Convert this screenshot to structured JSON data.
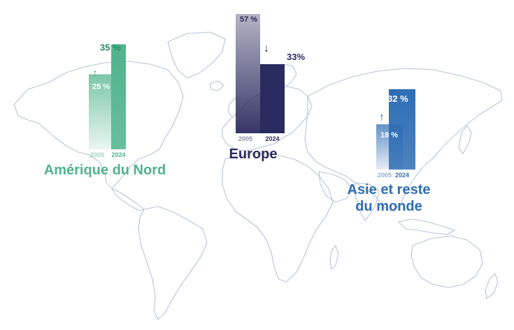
{
  "chart_data": [
    {
      "type": "bar",
      "region": "Amérique du Nord",
      "color": "#4fb38c",
      "trend": "up",
      "categories": [
        "2005",
        "2024"
      ],
      "values": [
        25,
        35
      ],
      "value_labels": [
        "25 %",
        "35 %"
      ],
      "ylim": [
        0,
        60
      ]
    },
    {
      "type": "bar",
      "region": "Europe",
      "color": "#2b2a5e",
      "trend": "down",
      "categories": [
        "2005",
        "2024"
      ],
      "values": [
        57,
        33
      ],
      "value_labels": [
        "57 %",
        "33%"
      ],
      "ylim": [
        0,
        60
      ]
    },
    {
      "type": "bar",
      "region": "Asie et reste du monde",
      "region_lines": [
        "Asie et reste",
        "du monde"
      ],
      "color": "#2e6db4",
      "trend": "up",
      "categories": [
        "2005",
        "2024"
      ],
      "values": [
        18,
        32
      ],
      "value_labels": [
        "18 %",
        "32 %"
      ],
      "ylim": [
        0,
        60
      ]
    }
  ],
  "arrow_glyphs": {
    "up": "↑",
    "down": "↓"
  },
  "map": {
    "outline_color": "#b9c3d6"
  }
}
